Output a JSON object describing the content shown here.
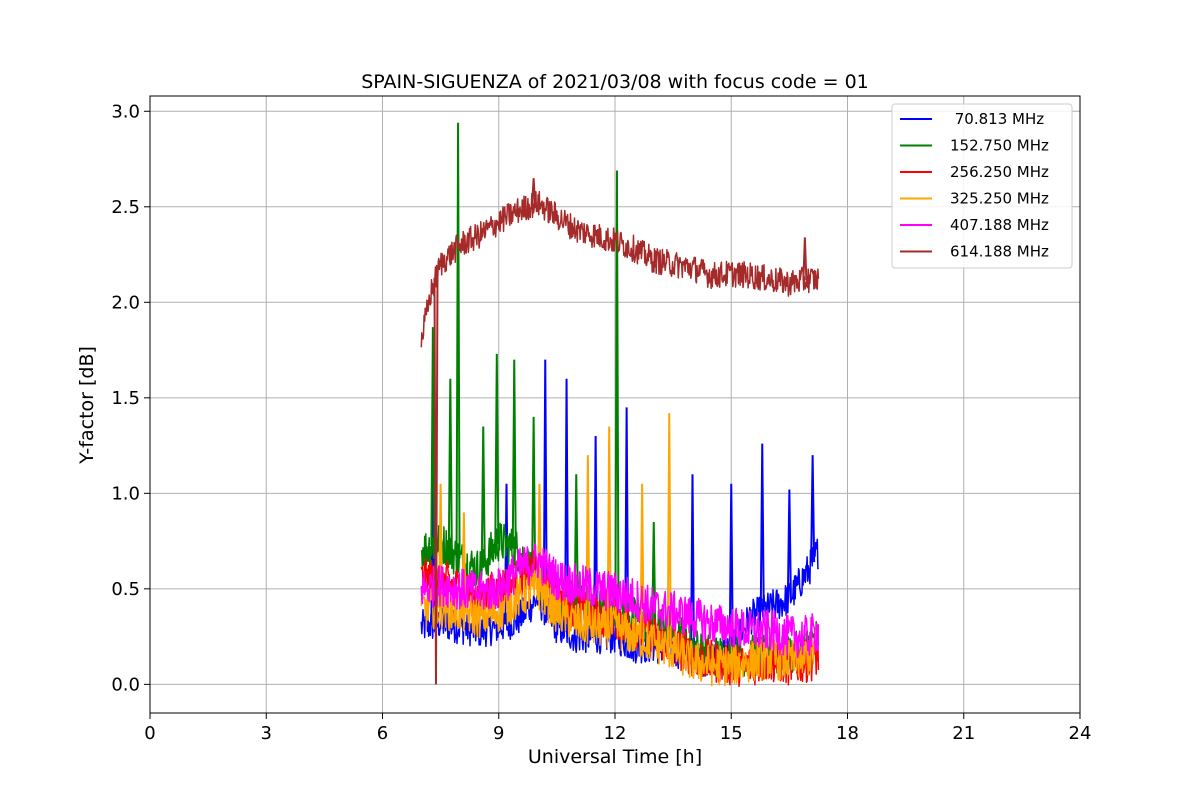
{
  "chart_data": {
    "type": "line",
    "title": "SPAIN-SIGUENZA of 2021/03/08 with focus code = 01",
    "xlabel": "Universal Time [h]",
    "ylabel": "Y-factor [dB]",
    "xlim": [
      0,
      24
    ],
    "ylim": [
      -0.15,
      3.08
    ],
    "xticks": [
      0,
      3,
      6,
      9,
      12,
      15,
      18,
      21,
      24
    ],
    "yticks": [
      0.0,
      0.5,
      1.0,
      1.5,
      2.0,
      2.5,
      3.0
    ],
    "xtick_labels": [
      "0",
      "3",
      "6",
      "9",
      "12",
      "15",
      "18",
      "21",
      "24"
    ],
    "ytick_labels": [
      "0.0",
      "0.5",
      "1.0",
      "1.5",
      "2.0",
      "2.5",
      "3.0"
    ],
    "grid": true,
    "legend_position": "top-right",
    "series": [
      {
        "name": " 70.813 MHz",
        "color": "#0000ff",
        "x": [
          7.0,
          7.5,
          8.0,
          8.5,
          9.0,
          9.5,
          10.0,
          10.5,
          11.0,
          11.5,
          12.0,
          12.5,
          13.0,
          13.5,
          14.0,
          14.5,
          15.0,
          15.5,
          16.0,
          16.5,
          17.0,
          17.25
        ],
        "y": [
          0.3,
          0.32,
          0.3,
          0.28,
          0.3,
          0.34,
          0.45,
          0.3,
          0.25,
          0.25,
          0.25,
          0.2,
          0.2,
          0.18,
          0.15,
          0.12,
          0.2,
          0.35,
          0.4,
          0.45,
          0.6,
          0.7
        ],
        "spikes": [
          {
            "x": 7.3,
            "y": 1.26
          },
          {
            "x": 9.2,
            "y": 1.05
          },
          {
            "x": 10.2,
            "y": 1.7
          },
          {
            "x": 10.75,
            "y": 1.6
          },
          {
            "x": 11.5,
            "y": 1.3
          },
          {
            "x": 12.3,
            "y": 1.45
          },
          {
            "x": 14.0,
            "y": 1.1
          },
          {
            "x": 15.0,
            "y": 1.05
          },
          {
            "x": 15.8,
            "y": 1.26
          },
          {
            "x": 16.5,
            "y": 1.02
          },
          {
            "x": 17.1,
            "y": 1.2
          }
        ]
      },
      {
        "name": "152.750 MHz",
        "color": "#008000",
        "x": [
          7.0,
          7.5,
          8.0,
          8.5,
          9.0,
          9.5,
          10.0,
          10.5,
          11.0,
          11.5,
          12.0,
          12.5,
          13.0,
          13.5,
          14.0,
          14.5,
          15.0,
          15.5,
          16.0,
          16.5,
          17.0,
          17.25
        ],
        "y": [
          0.7,
          0.75,
          0.65,
          0.6,
          0.75,
          0.7,
          0.55,
          0.45,
          0.45,
          0.4,
          0.4,
          0.35,
          0.3,
          0.3,
          0.2,
          0.15,
          0.15,
          0.15,
          0.15,
          0.15,
          0.2,
          0.25
        ],
        "spikes": [
          {
            "x": 7.3,
            "y": 1.87
          },
          {
            "x": 7.95,
            "y": 2.94
          },
          {
            "x": 7.75,
            "y": 1.6
          },
          {
            "x": 8.6,
            "y": 1.35
          },
          {
            "x": 8.95,
            "y": 1.73
          },
          {
            "x": 9.4,
            "y": 1.7
          },
          {
            "x": 9.9,
            "y": 1.4
          },
          {
            "x": 11.0,
            "y": 1.1
          },
          {
            "x": 12.05,
            "y": 2.69
          },
          {
            "x": 13.0,
            "y": 0.85
          }
        ]
      },
      {
        "name": "256.250 MHz",
        "color": "#ff0000",
        "x": [
          7.0,
          7.5,
          8.0,
          8.5,
          9.0,
          9.5,
          10.0,
          10.5,
          11.0,
          11.5,
          12.0,
          12.5,
          13.0,
          13.5,
          14.0,
          14.5,
          15.0,
          15.5,
          16.0,
          16.5,
          17.0,
          17.25
        ],
        "y": [
          0.55,
          0.55,
          0.5,
          0.45,
          0.5,
          0.55,
          0.6,
          0.45,
          0.4,
          0.35,
          0.35,
          0.3,
          0.25,
          0.2,
          0.15,
          0.12,
          0.1,
          0.1,
          0.12,
          0.1,
          0.12,
          0.15
        ],
        "spikes": []
      },
      {
        "name": "325.250 MHz",
        "color": "#ffa500",
        "x": [
          7.0,
          7.5,
          8.0,
          8.5,
          9.0,
          9.5,
          10.0,
          10.5,
          11.0,
          11.5,
          12.0,
          12.5,
          13.0,
          13.5,
          14.0,
          14.5,
          15.0,
          15.5,
          16.0,
          16.5,
          17.0,
          17.25
        ],
        "y": [
          0.4,
          0.4,
          0.38,
          0.35,
          0.38,
          0.45,
          0.5,
          0.38,
          0.32,
          0.3,
          0.3,
          0.25,
          0.22,
          0.18,
          0.12,
          0.1,
          0.1,
          0.12,
          0.14,
          0.12,
          0.15,
          0.2
        ],
        "spikes": [
          {
            "x": 7.5,
            "y": 1.05
          },
          {
            "x": 8.1,
            "y": 0.9
          },
          {
            "x": 10.05,
            "y": 1.05
          },
          {
            "x": 11.3,
            "y": 1.2
          },
          {
            "x": 11.85,
            "y": 1.35
          },
          {
            "x": 12.7,
            "y": 1.05
          },
          {
            "x": 13.4,
            "y": 1.42
          }
        ]
      },
      {
        "name": "407.188 MHz",
        "color": "#ff00ff",
        "x": [
          7.0,
          7.5,
          8.0,
          8.5,
          9.0,
          9.5,
          10.0,
          10.5,
          11.0,
          11.5,
          12.0,
          12.5,
          13.0,
          13.5,
          14.0,
          14.5,
          15.0,
          15.5,
          16.0,
          16.5,
          17.0,
          17.25
        ],
        "y": [
          0.5,
          0.52,
          0.5,
          0.48,
          0.5,
          0.6,
          0.65,
          0.55,
          0.52,
          0.5,
          0.48,
          0.45,
          0.4,
          0.38,
          0.35,
          0.32,
          0.3,
          0.28,
          0.28,
          0.25,
          0.25,
          0.28
        ],
        "spikes": []
      },
      {
        "name": "614.188 MHz",
        "color": "#a52a2a",
        "x": [
          7.0,
          7.25,
          7.5,
          8.0,
          8.5,
          9.0,
          9.5,
          10.0,
          10.5,
          11.0,
          11.5,
          12.0,
          12.5,
          13.0,
          13.5,
          14.0,
          14.5,
          15.0,
          15.5,
          16.0,
          16.5,
          17.0,
          17.25
        ],
        "y": [
          1.8,
          2.05,
          2.2,
          2.3,
          2.35,
          2.42,
          2.48,
          2.52,
          2.45,
          2.38,
          2.35,
          2.32,
          2.28,
          2.22,
          2.2,
          2.18,
          2.14,
          2.15,
          2.14,
          2.12,
          2.1,
          2.12,
          2.12
        ],
        "spikes": [
          {
            "x": 7.38,
            "y": 0.0
          },
          {
            "x": 9.9,
            "y": 2.65
          },
          {
            "x": 16.9,
            "y": 2.34
          }
        ]
      }
    ]
  }
}
